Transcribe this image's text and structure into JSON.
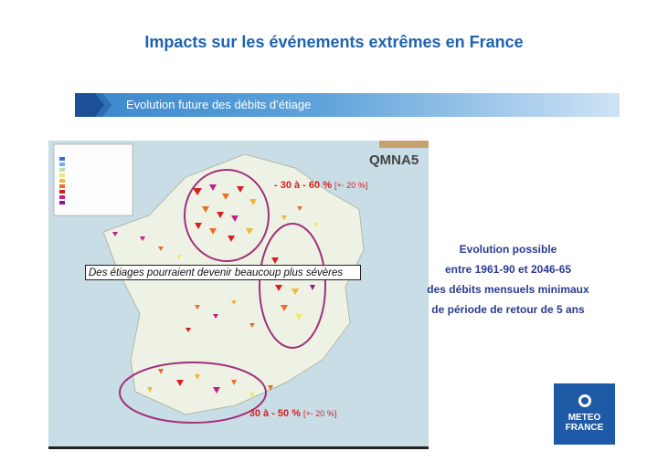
{
  "title": "Impacts sur les événements extrêmes en France",
  "banner": {
    "text": "Evolution future des débits d’étiage"
  },
  "map": {
    "label": "QMNA5",
    "note": "Des étiages pourraient devenir beaucoup plus sévères",
    "annotation_north": {
      "value": "- 30 à - 60 %",
      "range": "[+- 20 %]"
    },
    "annotation_south": {
      "value": "- 30 à - 50 %",
      "range": "[+- 20 %]"
    }
  },
  "description": {
    "line1": "Evolution possible",
    "line2": "entre 1961-90 et 2046-65",
    "line3": "des débits mensuels minimaux",
    "line4": "de période de retour de 5 ans"
  },
  "logo": {
    "line1": "METEO",
    "line2": "FRANCE"
  },
  "colors": {
    "title": "#1f63b0",
    "accent": "#d62020",
    "ellipse": "#a0307a",
    "logo_bg": "#1f5aa6"
  }
}
